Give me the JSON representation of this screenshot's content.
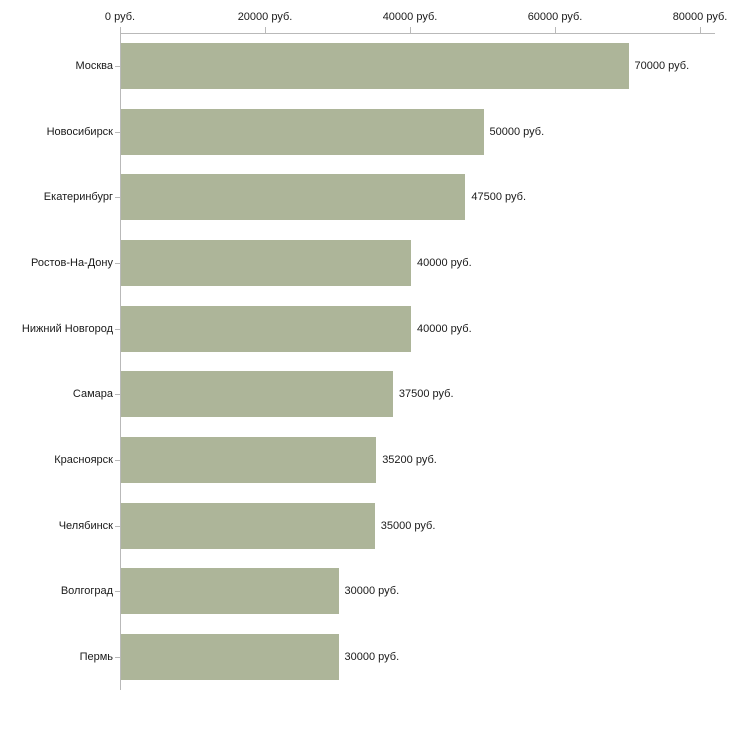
{
  "chart_data": {
    "type": "bar",
    "orientation": "horizontal",
    "title": "",
    "xlabel": "",
    "ylabel": "",
    "categories": [
      "Москва",
      "Новосибирск",
      "Екатеринбург",
      "Ростов-На-Дону",
      "Нижний Новгород",
      "Самара",
      "Красноярск",
      "Челябинск",
      "Волгоград",
      "Пермь"
    ],
    "values": [
      70000,
      50000,
      47500,
      40000,
      40000,
      37500,
      35200,
      35000,
      30000,
      30000
    ],
    "value_labels": [
      "70000 руб.",
      "50000 руб.",
      "47500 руб.",
      "40000 руб.",
      "40000 руб.",
      "37500 руб.",
      "35200 руб.",
      "35000 руб.",
      "30000 руб.",
      "30000 руб."
    ],
    "x_axis": {
      "min": 0,
      "max": 80000,
      "tick_values": [
        0,
        20000,
        40000,
        60000,
        80000
      ],
      "tick_labels": [
        "0 руб.",
        "20000 руб.",
        "40000 руб.",
        "60000 руб.",
        "80000 руб."
      ],
      "position": "top"
    },
    "grid": false,
    "legend": false,
    "colors": {
      "bar_fill": "#adb599",
      "axis_line": "#b9b9b9",
      "text": "#1a1a1a",
      "background": "#ffffff"
    }
  }
}
